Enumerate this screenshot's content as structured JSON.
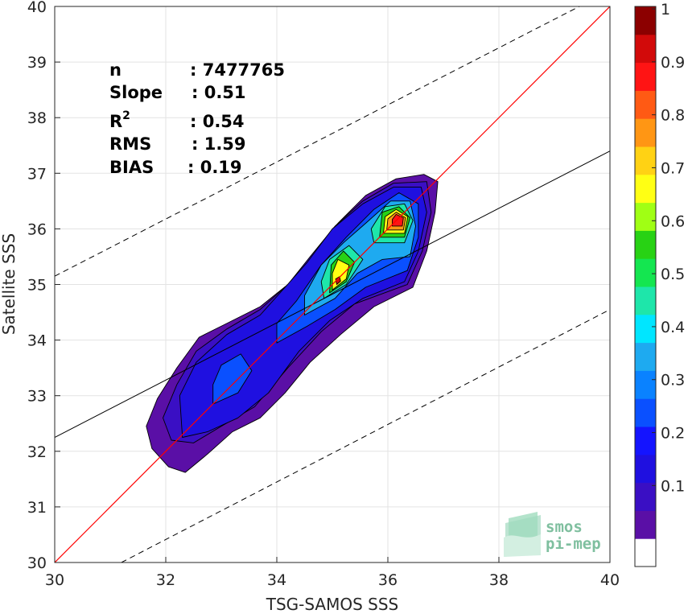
{
  "chart_data": {
    "type": "heatmap",
    "subtype": "density-contour-scatter",
    "xlabel": "TSG-SAMOS SSS",
    "ylabel": "Satellite SSS",
    "xlim": [
      30,
      40
    ],
    "ylim": [
      30,
      40
    ],
    "xticks": [
      "30",
      "32",
      "34",
      "36",
      "38",
      "40"
    ],
    "yticks": [
      "30",
      "31",
      "32",
      "33",
      "34",
      "35",
      "36",
      "37",
      "38",
      "39",
      "40"
    ],
    "grid": true,
    "stats": [
      {
        "label": "n",
        "sep": ": ",
        "value": "7477765"
      },
      {
        "label": "Slope",
        "sep": ": ",
        "value": "0.51"
      },
      {
        "label": "R",
        "sup": "2",
        "sep": ": ",
        "value": "0.54"
      },
      {
        "label": "RMS",
        "sep": ": ",
        "value": "1.59"
      },
      {
        "label": "BIAS",
        "sep": ": ",
        "value": "0.19"
      }
    ],
    "one_to_one_line": {
      "color": "#ff0000",
      "points": [
        [
          30,
          30
        ],
        [
          40,
          40
        ]
      ]
    },
    "fit_line": {
      "color": "#000000",
      "points": [
        [
          30,
          32.25
        ],
        [
          40,
          37.4
        ]
      ]
    },
    "bound_lines": [
      {
        "style": "dashed",
        "points": [
          [
            30,
            35.15
          ],
          [
            39.45,
            40
          ]
        ]
      },
      {
        "style": "dashed",
        "points": [
          [
            31.2,
            30
          ],
          [
            40,
            34.55
          ]
        ]
      }
    ],
    "density_peaks": [
      {
        "x": 36.2,
        "y": 36.15,
        "level": 0.95
      },
      {
        "x": 35.1,
        "y": 35.05,
        "level": 0.75
      }
    ],
    "colorbar": {
      "ticks": [
        "0.1",
        "0.2",
        "0.3",
        "0.4",
        "0.5",
        "0.6",
        "0.7",
        "0.8",
        "0.9",
        "1"
      ],
      "range": [
        0,
        1
      ],
      "bins": 19,
      "colors": [
        "#ffffff",
        "#5a0fa6",
        "#3a0fc4",
        "#1f10e0",
        "#1414ff",
        "#0a50ff",
        "#0a82ff",
        "#1eaaf0",
        "#00e6ff",
        "#1ee6aa",
        "#14e650",
        "#28d214",
        "#a0ff14",
        "#ffff14",
        "#ffd214",
        "#ff9614",
        "#ff5a14",
        "#ff1414",
        "#d20a0a",
        "#8c0000"
      ]
    },
    "logo": {
      "line1": "smos",
      "line2": "pi-mep"
    }
  }
}
